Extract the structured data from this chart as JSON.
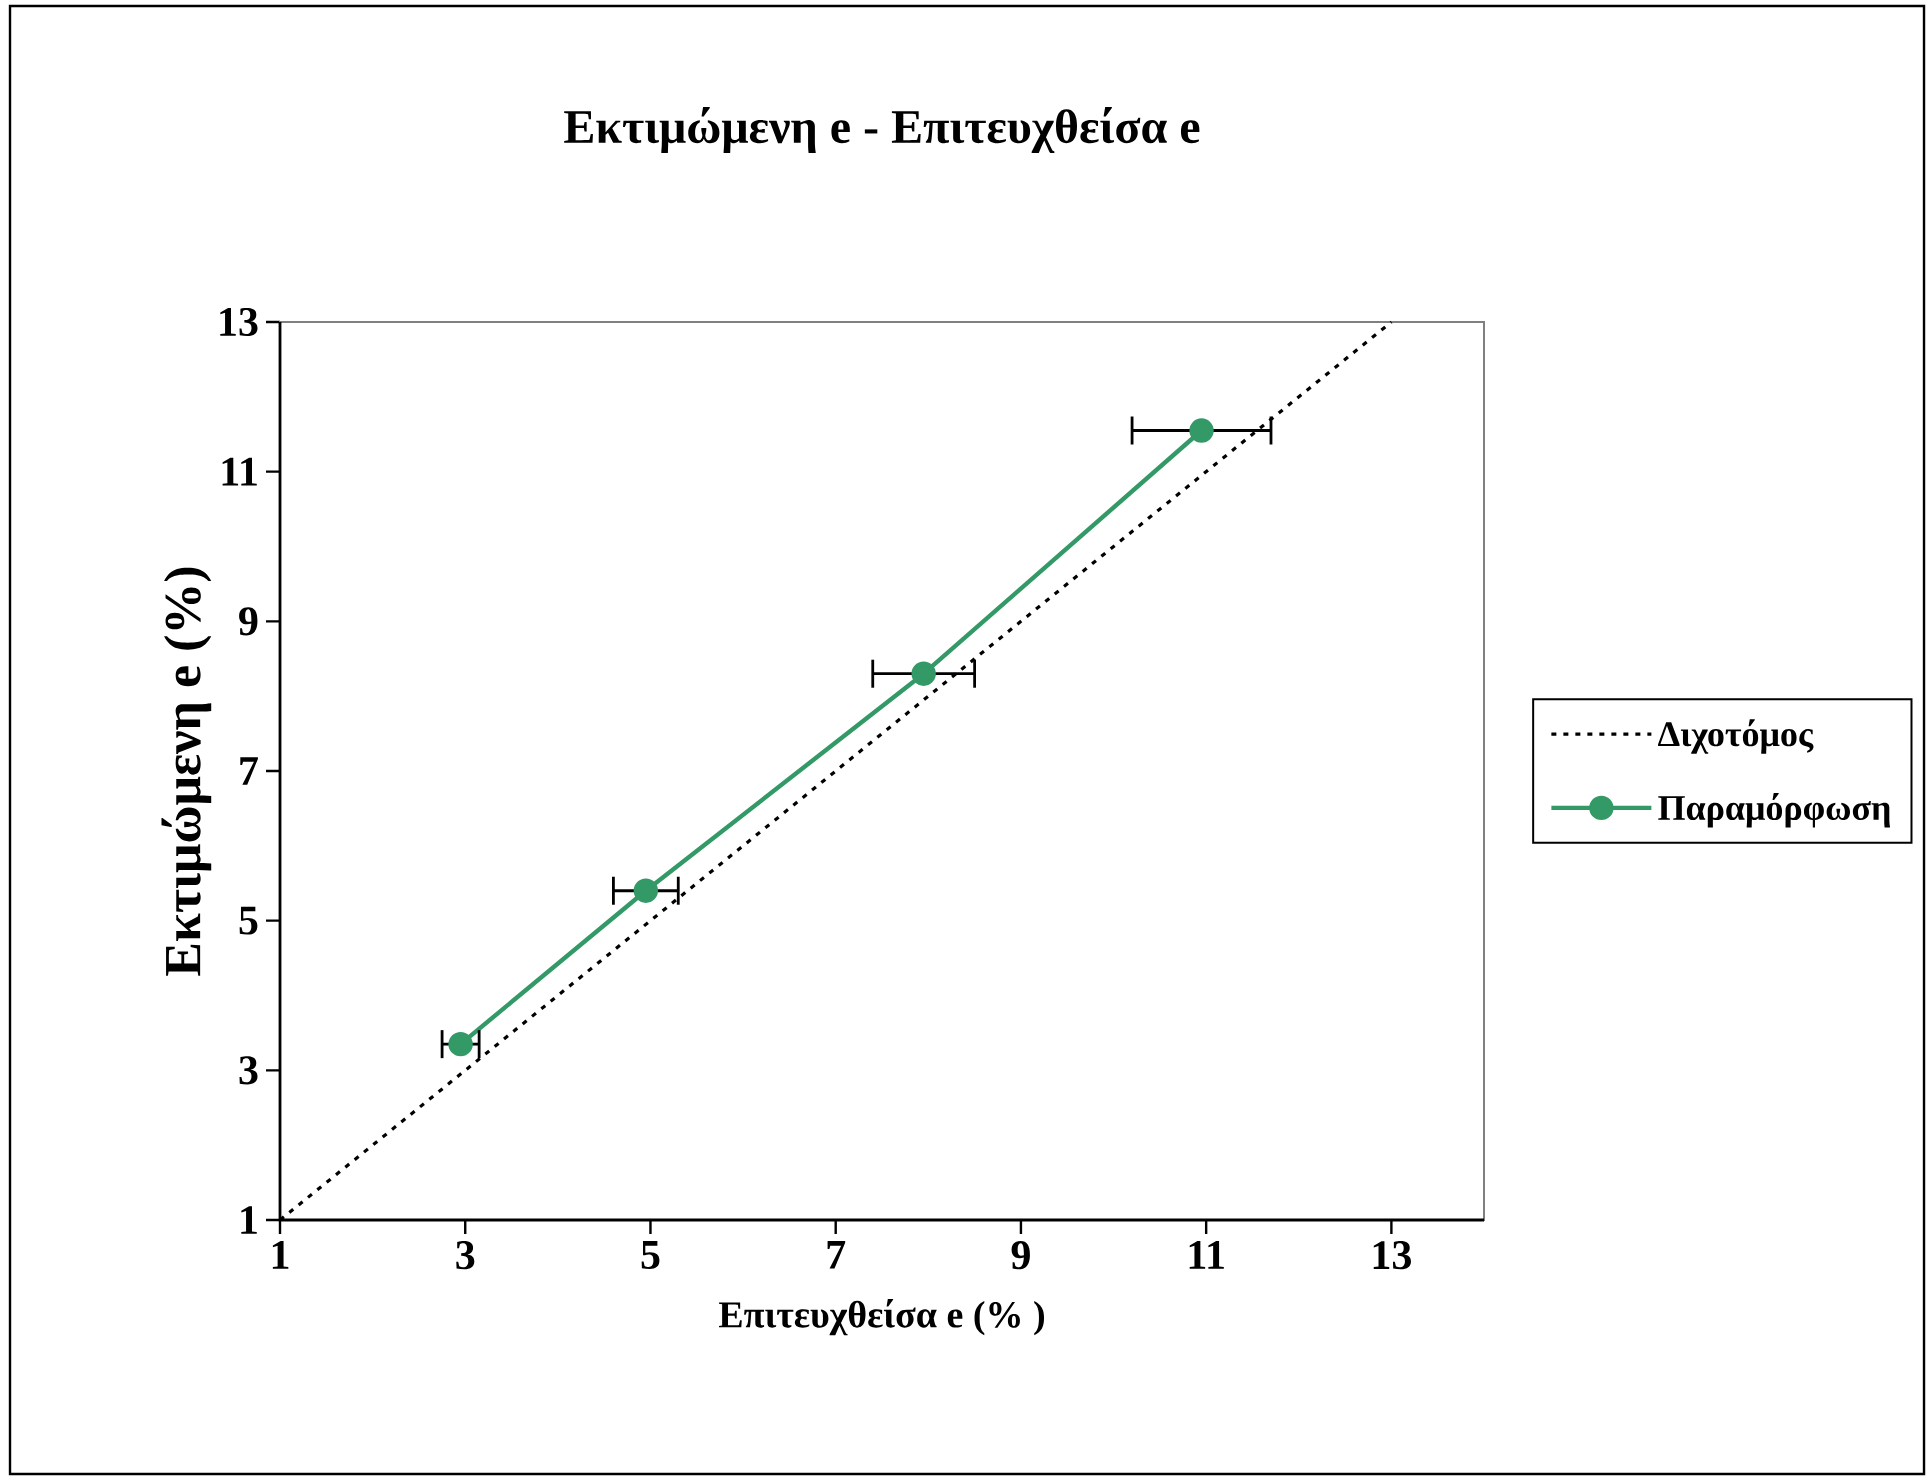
{
  "chart_data": {
    "type": "line",
    "title": "Εκτιμώμενη e - Επιτευχθείσα e",
    "xlabel": "Επιτευχθείσα e (% )",
    "ylabel": "Εκτιμώμενη e (%)",
    "xlim": [
      1,
      14
    ],
    "ylim": [
      1,
      13
    ],
    "xticks": [
      1,
      3,
      5,
      7,
      9,
      11,
      13
    ],
    "yticks": [
      1,
      3,
      5,
      7,
      9,
      11,
      13
    ],
    "legend": "right",
    "series": [
      {
        "name": "Διχοτόμος",
        "color": "#000000",
        "x": [
          1,
          13
        ],
        "values": [
          1,
          13
        ],
        "line_style": "dotted",
        "marker": "none"
      },
      {
        "name": "Παραμόρφωση",
        "color": "#339966",
        "x": [
          2.95,
          4.95,
          7.95,
          10.95
        ],
        "values": [
          3.35,
          5.4,
          8.3,
          11.55
        ],
        "marker": "circle",
        "line_style": "solid",
        "xerrors": [
          0.2,
          0.35,
          0.55,
          0.75
        ]
      }
    ]
  }
}
